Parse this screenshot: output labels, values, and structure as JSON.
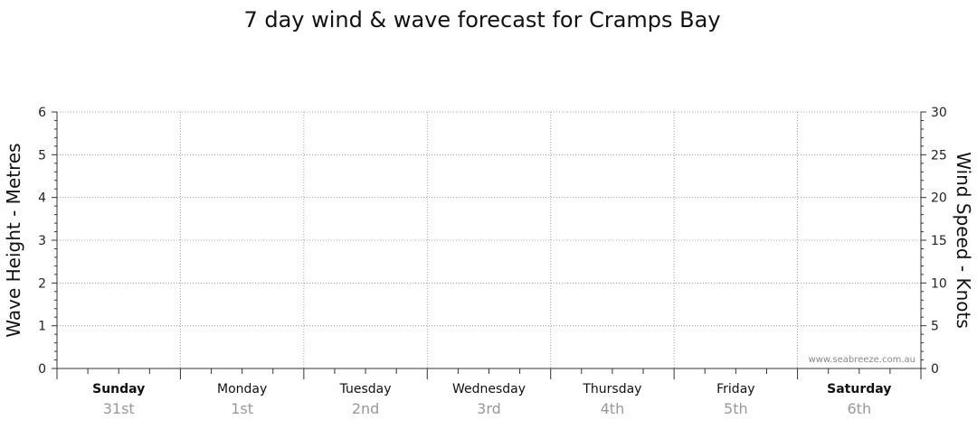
{
  "chart_data": {
    "type": "line",
    "title": "7 day wind & wave forecast for Cramps Bay",
    "y_left": {
      "label": "Wave Height - Metres",
      "range": [
        0,
        6
      ],
      "ticks": [
        0,
        1,
        2,
        3,
        4,
        5,
        6
      ]
    },
    "y_right": {
      "label": "Wind Speed - Knots",
      "range": [
        0,
        30
      ],
      "ticks": [
        0,
        5,
        10,
        15,
        20,
        25,
        30
      ]
    },
    "days": [
      {
        "name": "Sunday",
        "date": "31st",
        "bold": true
      },
      {
        "name": "Monday",
        "date": "1st",
        "bold": false
      },
      {
        "name": "Tuesday",
        "date": "2nd",
        "bold": false
      },
      {
        "name": "Wednesday",
        "date": "3rd",
        "bold": false
      },
      {
        "name": "Thursday",
        "date": "4th",
        "bold": false
      },
      {
        "name": "Friday",
        "date": "5th",
        "bold": false
      },
      {
        "name": "Saturday",
        "date": "6th",
        "bold": true
      }
    ],
    "series": [],
    "grid": true
  },
  "watermark": "www.seabreeze.com.au",
  "colors": {
    "axis": "#333333",
    "grid": "#888888",
    "day_date": "#999999"
  }
}
